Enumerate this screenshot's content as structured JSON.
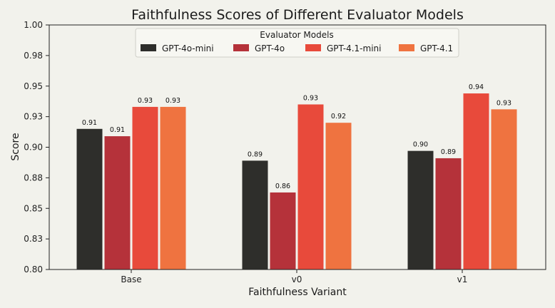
{
  "chart_data": {
    "type": "bar",
    "title": "Faithfulness Scores of Different Evaluator Models",
    "xlabel": "Faithfulness Variant",
    "ylabel": "Score",
    "ylim": [
      0.8,
      1.0
    ],
    "yticks": [
      0.8,
      0.825,
      0.85,
      0.875,
      0.9,
      0.925,
      0.95,
      0.975,
      1.0
    ],
    "ytick_labels": [
      "0.80",
      "0.83",
      "0.85",
      "0.88",
      "0.90",
      "0.93",
      "0.95",
      "0.98",
      "1.00"
    ],
    "categories": [
      "Base",
      "v0",
      "v1"
    ],
    "legend": {
      "title": "Evaluator Models",
      "placement": "top-center",
      "columns": 4
    },
    "grid": false,
    "series": [
      {
        "name": "GPT-4o-mini",
        "color": "#2e2e2b",
        "values": [
          0.915,
          0.889,
          0.897
        ],
        "labels": [
          "0.91",
          "0.89",
          "0.90"
        ]
      },
      {
        "name": "GPT-4o",
        "color": "#b5323a",
        "values": [
          0.909,
          0.863,
          0.891
        ],
        "labels": [
          "0.91",
          "0.86",
          "0.89"
        ]
      },
      {
        "name": "GPT-4.1-mini",
        "color": "#e84a3b",
        "values": [
          0.933,
          0.935,
          0.944
        ],
        "labels": [
          "0.93",
          "0.93",
          "0.94"
        ]
      },
      {
        "name": "GPT-4.1",
        "color": "#ef7340",
        "values": [
          0.933,
          0.92,
          0.931
        ],
        "labels": [
          "0.93",
          "0.92",
          "0.93"
        ]
      }
    ]
  }
}
